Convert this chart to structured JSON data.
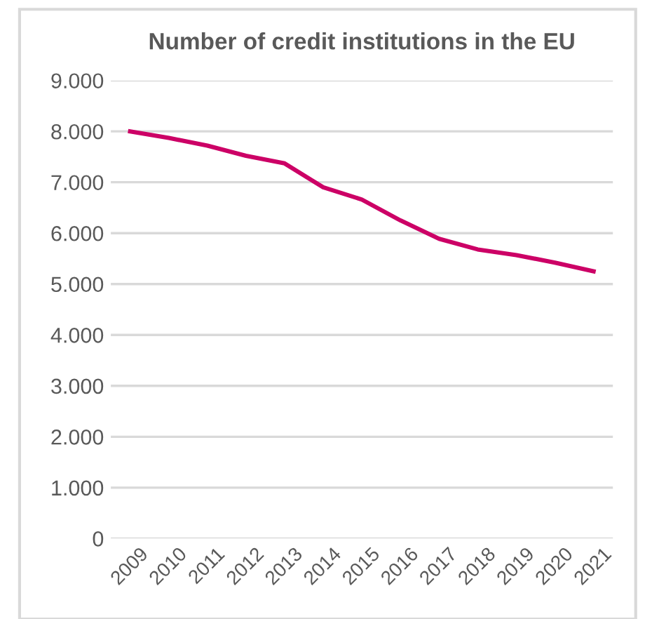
{
  "chart_data": {
    "type": "line",
    "title": "Number of credit institutions in the EU",
    "categories": [
      "2009",
      "2010",
      "2011",
      "2012",
      "2013",
      "2014",
      "2015",
      "2016",
      "2017",
      "2018",
      "2019",
      "2020",
      "2021"
    ],
    "series": [
      {
        "color": "#cc0066",
        "values": [
          8000,
          7870,
          7720,
          7520,
          7370,
          6900,
          6660,
          6250,
          5890,
          5680,
          5570,
          5420,
          5250
        ]
      }
    ],
    "ylim": [
      0,
      9000
    ],
    "yticks": [
      0,
      {
        "value": 1000,
        "label": "1.000"
      },
      {
        "value": 2000,
        "label": "2.000"
      },
      {
        "value": 3000,
        "label": "3.000"
      },
      {
        "value": 4000,
        "label": "4.000"
      },
      {
        "value": 5000,
        "label": "5.000"
      },
      {
        "value": 6000,
        "label": "6.000"
      },
      {
        "value": 7000,
        "label": "7.000"
      },
      {
        "value": 8000,
        "label": "8.000"
      },
      {
        "value": 9000,
        "label": "9.000"
      }
    ],
    "grid": "y",
    "legend": false,
    "marker": "none",
    "line_style": "solid"
  }
}
